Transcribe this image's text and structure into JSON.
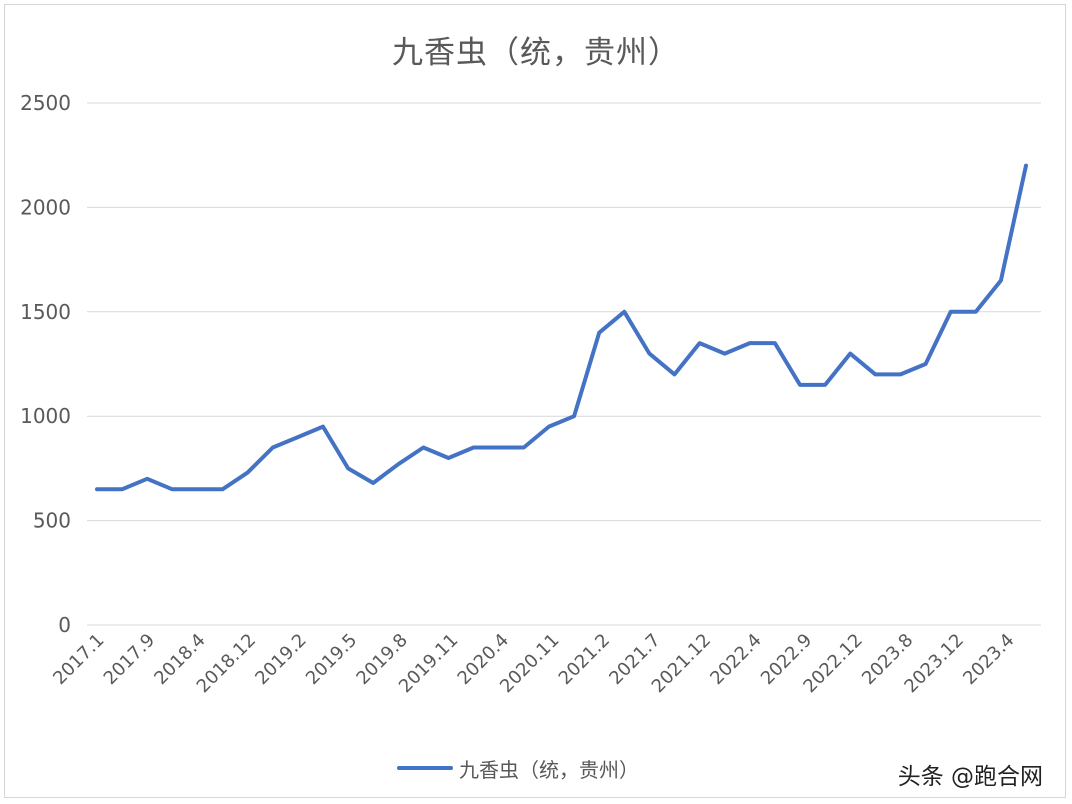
{
  "watermark": "头条 @跑合网",
  "chart_data": {
    "type": "line",
    "title": "九香虫（统，贵州）",
    "xlabel": "",
    "ylabel": "",
    "ylim": [
      0,
      2500
    ],
    "yticks": [
      0,
      500,
      1000,
      1500,
      2000,
      2500
    ],
    "grid": true,
    "legend_position": "bottom",
    "color": "#4472C4",
    "tick_labels": [
      "2017.1",
      "2017.9",
      "2018.4",
      "2018.12",
      "2019.2",
      "2019.5",
      "2019.8",
      "2019.11",
      "2020.4",
      "2020.11",
      "2021.2",
      "2021.7",
      "2021.12",
      "2022.4",
      "2022.9",
      "2022.12",
      "2023.8",
      "2023.12",
      "2023.4"
    ],
    "series": [
      {
        "name": "九香虫（统，贵州）",
        "values": [
          650,
          650,
          700,
          650,
          650,
          650,
          730,
          850,
          900,
          950,
          750,
          680,
          770,
          850,
          800,
          850,
          850,
          850,
          950,
          1000,
          1400,
          1500,
          1300,
          1200,
          1350,
          1300,
          1350,
          1350,
          1150,
          1150,
          1300,
          1200,
          1200,
          1250,
          1500,
          1500,
          1650,
          2200
        ]
      }
    ]
  }
}
